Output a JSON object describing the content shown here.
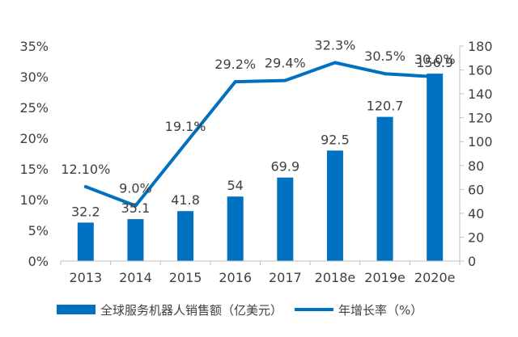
{
  "chart_data": {
    "type": "bar",
    "categories": [
      "2013",
      "2014",
      "2015",
      "2016",
      "2017",
      "2018e",
      "2019e",
      "2020e"
    ],
    "series": [
      {
        "name": "全球服务机器人销售额（亿美元）",
        "type": "bar",
        "axis": "right",
        "values": [
          32.2,
          35.1,
          41.8,
          54,
          69.9,
          92.5,
          120.7,
          156.9
        ],
        "labels": [
          "32.2",
          "35.1",
          "41.8",
          "54",
          "69.9",
          "92.5",
          "120.7",
          "156.9"
        ],
        "color": "#0070C0"
      },
      {
        "name": "年增长率（%）",
        "type": "line",
        "axis": "left",
        "values": [
          12.1,
          9.0,
          19.1,
          29.2,
          29.4,
          32.3,
          30.5,
          30.0
        ],
        "labels": [
          "12.10%",
          "9.0%",
          "19.1%",
          "29.2%",
          "29.4%",
          "32.3%",
          "30.5%",
          "30.0%"
        ],
        "color": "#0070C0"
      }
    ],
    "y_left": {
      "min": 0,
      "max": 35,
      "ticks": [
        "0%",
        "5%",
        "10%",
        "15%",
        "20%",
        "25%",
        "30%",
        "35%"
      ]
    },
    "y_right": {
      "min": 0,
      "max": 180,
      "ticks": [
        "0",
        "20",
        "40",
        "60",
        "80",
        "100",
        "120",
        "140",
        "160",
        "180"
      ]
    },
    "grid": false,
    "legend": "bottom"
  }
}
